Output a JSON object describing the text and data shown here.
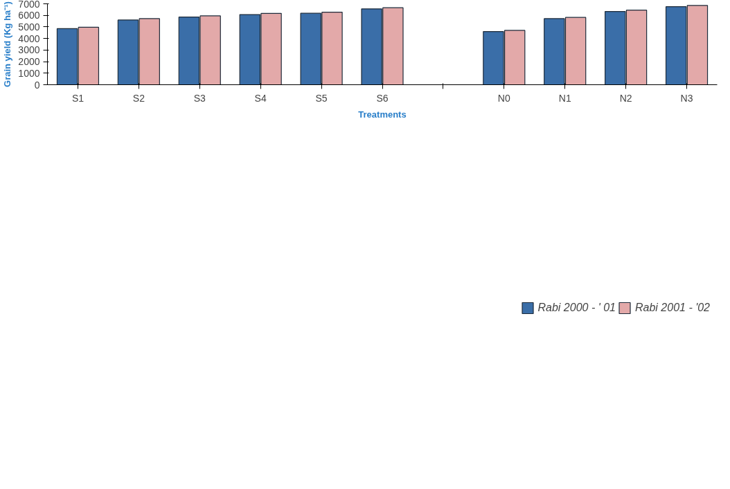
{
  "chart_data": {
    "type": "bar",
    "xlabel": "Treatments",
    "ylabel": "Grain yield (Kg ha⁻¹)",
    "categories": [
      "S1",
      "S2",
      "S3",
      "S4",
      "S5",
      "S6",
      null,
      "N0",
      "N1",
      "N2",
      "N3"
    ],
    "series": [
      {
        "name": "Rabi 2000 - ' 01",
        "color": "#3a6ea8",
        "values": [
          4850,
          5600,
          5850,
          6070,
          6180,
          6560,
          null,
          4600,
          5720,
          6340,
          6750
        ]
      },
      {
        "name": "Rabi 2001 - '02",
        "color": "#e3a9a9",
        "values": [
          4970,
          5720,
          5960,
          6170,
          6280,
          6660,
          null,
          4700,
          5820,
          6450,
          6860
        ]
      }
    ],
    "ylim": [
      0,
      7000
    ],
    "yticks": [
      0,
      1000,
      2000,
      3000,
      4000,
      5000,
      6000,
      7000
    ],
    "grid": false,
    "legend": "bottom"
  }
}
